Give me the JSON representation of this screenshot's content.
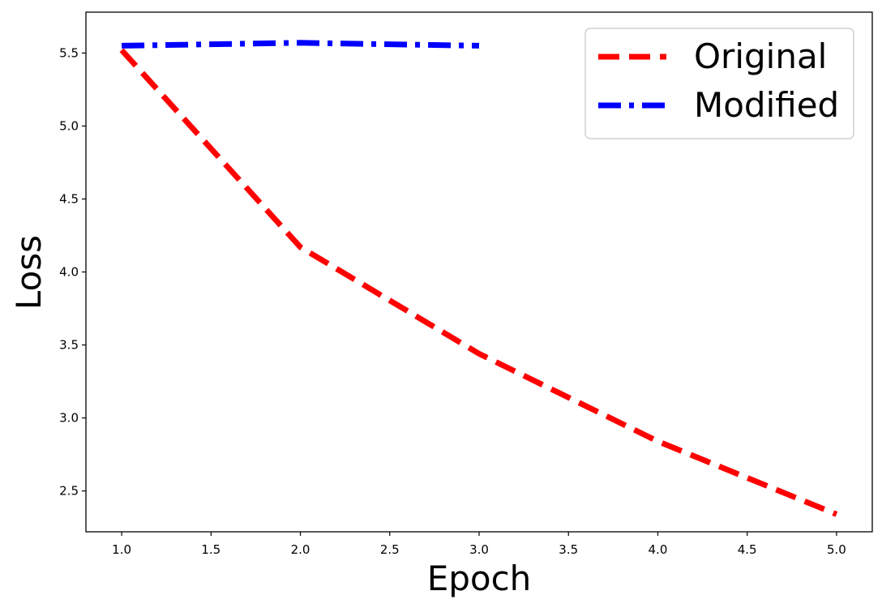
{
  "chart_data": {
    "type": "line",
    "xlabel": "Epoch",
    "ylabel": "Loss",
    "xlim": [
      0.8,
      5.2
    ],
    "ylim": [
      2.22,
      5.78
    ],
    "x_ticks": [
      "1.0",
      "1.5",
      "2.0",
      "2.5",
      "3.0",
      "3.5",
      "4.0",
      "4.5",
      "5.0"
    ],
    "y_ticks": [
      "2.5",
      "3.0",
      "3.5",
      "4.0",
      "4.5",
      "5.0",
      "5.5"
    ],
    "grid": false,
    "legend_position": "top-right",
    "series": [
      {
        "name": "Original",
        "x": [
          1,
          2,
          3,
          4,
          5
        ],
        "y": [
          5.52,
          4.17,
          3.44,
          2.84,
          2.34
        ],
        "color": "#ff0000",
        "style": "dashed"
      },
      {
        "name": "Modified",
        "x": [
          1,
          2,
          3
        ],
        "y": [
          5.55,
          5.57,
          5.55
        ],
        "color": "#0000ff",
        "style": "dashdot"
      }
    ]
  }
}
